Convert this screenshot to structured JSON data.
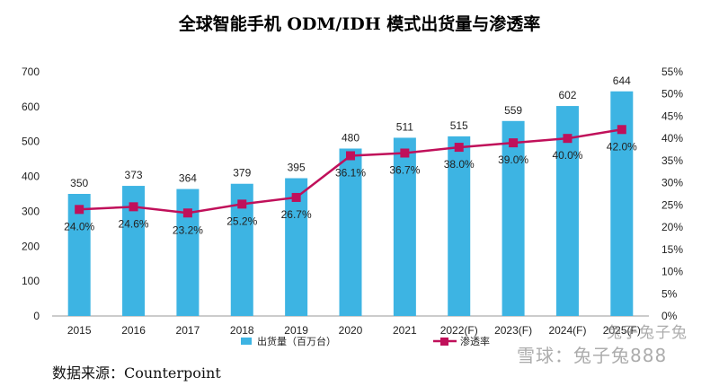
{
  "chart_data": {
    "type": "bar",
    "title": "全球智能手机 ODM/IDH 模式出货量与渗透率",
    "categories": [
      "2015",
      "2016",
      "2017",
      "2018",
      "2019",
      "2020",
      "2021",
      "2022(F)",
      "2023(F)",
      "2024(F)",
      "2025(F)"
    ],
    "series": [
      {
        "name": "出货量（百万台）",
        "type": "bar",
        "axis": "left",
        "color": "#3db4e3",
        "values": [
          350,
          373,
          364,
          379,
          395,
          480,
          511,
          515,
          559,
          602,
          644
        ],
        "labels": [
          "350",
          "373",
          "364",
          "379",
          "395",
          "480",
          "511",
          "515",
          "559",
          "602",
          "644"
        ]
      },
      {
        "name": "渗透率",
        "type": "line",
        "axis": "right",
        "color": "#c0105a",
        "values": [
          24.0,
          24.6,
          23.2,
          25.2,
          26.7,
          36.1,
          36.7,
          38.0,
          39.0,
          40.0,
          42.0
        ],
        "labels": [
          "24.0%",
          "24.6%",
          "23.2%",
          "25.2%",
          "26.7%",
          "36.1%",
          "36.7%",
          "38.0%",
          "39.0%",
          "40.0%",
          "42.0%"
        ]
      }
    ],
    "y_left": {
      "ylim": [
        0,
        700
      ],
      "ticks": [
        "0",
        "100",
        "200",
        "300",
        "400",
        "500",
        "600",
        "700"
      ]
    },
    "y_right": {
      "ylim": [
        0,
        55
      ],
      "ticks": [
        "0%",
        "5%",
        "10%",
        "15%",
        "20%",
        "25%",
        "30%",
        "35%",
        "40%",
        "45%",
        "50%",
        "55%"
      ]
    },
    "legend_position": "bottom"
  },
  "source": "数据来源：Counterpoint",
  "watermark": {
    "line1": "兔子兔子兔",
    "line2": "雪球：兔子兔888"
  }
}
